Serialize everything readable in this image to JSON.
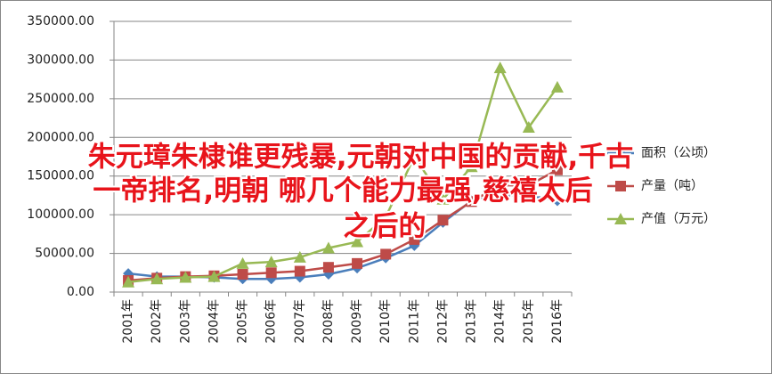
{
  "chart_data": {
    "type": "line",
    "categories": [
      "2001年",
      "2002年",
      "2003年",
      "2004年",
      "2005年",
      "2006年",
      "2007年",
      "2008年",
      "2009年",
      "2010年",
      "2011年",
      "2012年",
      "2013年",
      "2014年",
      "2015年",
      "2016年"
    ],
    "series": [
      {
        "name": "面积（公顷）",
        "color": "#4a7ebb",
        "marker": "diamond",
        "values": [
          24000,
          20000,
          20000,
          19000,
          17000,
          17000,
          19000,
          23000,
          31000,
          44000,
          60000,
          90000,
          118000,
          125000,
          125000,
          118000
        ]
      },
      {
        "name": "产量（吨）",
        "color": "#be4b48",
        "marker": "square",
        "values": [
          15000,
          18000,
          20000,
          21000,
          23000,
          25000,
          27000,
          32000,
          37000,
          49000,
          68000,
          93000,
          117000,
          138000,
          138000,
          158000
        ]
      },
      {
        "name": "产值（万元）",
        "color": "#98b954",
        "marker": "triangle",
        "values": [
          13000,
          17000,
          19000,
          20000,
          37000,
          39000,
          45000,
          57000,
          65000,
          97000,
          175000,
          120000,
          162000,
          290000,
          213000,
          265000
        ]
      }
    ],
    "ylim": [
      0,
      350000
    ],
    "yticks": [
      {
        "value": 0,
        "label": "0.00"
      },
      {
        "value": 50000,
        "label": "50000.00"
      },
      {
        "value": 100000,
        "label": "100000.00"
      },
      {
        "value": 150000,
        "label": "150000.00"
      },
      {
        "value": 200000,
        "label": "200000.00"
      },
      {
        "value": 250000,
        "label": "250000.00"
      },
      {
        "value": 300000,
        "label": "300000.00"
      },
      {
        "value": 350000,
        "label": "350000.00"
      }
    ],
    "grid": true,
    "legend": "right",
    "annotation_lines": [
      "朱元璋朱棣谁更残暴,元朝对中国的贡献,千古",
      "一帝排名,明朝  哪几个能力最强,慈禧太后",
      "之后的"
    ]
  }
}
